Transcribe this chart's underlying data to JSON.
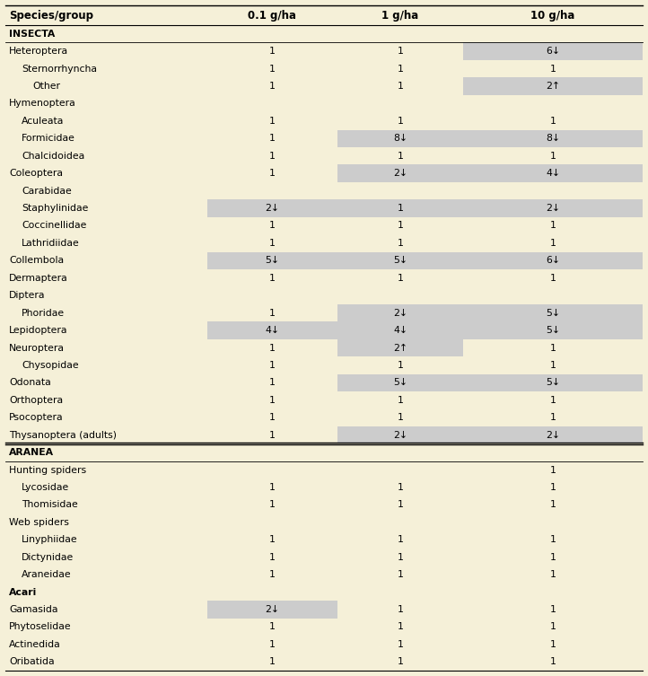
{
  "bg_color": "#f5f0d8",
  "cell_bg_highlight": "#cccccc",
  "col_headers": [
    "Species/group",
    "0.1 g/ha",
    "1 g/ha",
    "10 g/ha"
  ],
  "rows": [
    {
      "label": "INSECTA",
      "indent": 0,
      "bold": true,
      "vals": [
        "",
        "",
        ""
      ],
      "highlights": [
        false,
        false,
        false
      ]
    },
    {
      "label": "Heteroptera",
      "indent": 0,
      "bold": false,
      "vals": [
        "1",
        "1",
        "6↓"
      ],
      "highlights": [
        false,
        false,
        true
      ]
    },
    {
      "label": "Sternorrhyncha",
      "indent": 1,
      "bold": false,
      "vals": [
        "1",
        "1",
        "1"
      ],
      "highlights": [
        false,
        false,
        false
      ]
    },
    {
      "label": "Other",
      "indent": 2,
      "bold": false,
      "vals": [
        "1",
        "1",
        "2↑"
      ],
      "highlights": [
        false,
        false,
        true
      ]
    },
    {
      "label": "Hymenoptera",
      "indent": 0,
      "bold": false,
      "vals": [
        "",
        "",
        ""
      ],
      "highlights": [
        false,
        false,
        false
      ]
    },
    {
      "label": "Aculeata",
      "indent": 1,
      "bold": false,
      "vals": [
        "1",
        "1",
        "1"
      ],
      "highlights": [
        false,
        false,
        false
      ]
    },
    {
      "label": "Formicidae",
      "indent": 1,
      "bold": false,
      "vals": [
        "1",
        "8↓",
        "8↓"
      ],
      "highlights": [
        false,
        true,
        true
      ]
    },
    {
      "label": "Chalcidoidea",
      "indent": 1,
      "bold": false,
      "vals": [
        "1",
        "1",
        "1"
      ],
      "highlights": [
        false,
        false,
        false
      ]
    },
    {
      "label": "Coleoptera",
      "indent": 0,
      "bold": false,
      "vals": [
        "1",
        "2↓",
        "4↓"
      ],
      "highlights": [
        false,
        true,
        true
      ]
    },
    {
      "label": "Carabidae",
      "indent": 1,
      "bold": false,
      "vals": [
        "",
        "",
        ""
      ],
      "highlights": [
        false,
        false,
        false
      ]
    },
    {
      "label": "Staphylinidae",
      "indent": 1,
      "bold": false,
      "vals": [
        "2↓",
        "1",
        "2↓"
      ],
      "highlights": [
        true,
        false,
        true
      ]
    },
    {
      "label": "Coccinellidae",
      "indent": 1,
      "bold": false,
      "vals": [
        "1",
        "1",
        "1"
      ],
      "highlights": [
        false,
        false,
        false
      ]
    },
    {
      "label": "Lathridiidae",
      "indent": 1,
      "bold": false,
      "vals": [
        "1",
        "1",
        "1"
      ],
      "highlights": [
        false,
        false,
        false
      ]
    },
    {
      "label": "Collembola",
      "indent": 0,
      "bold": false,
      "vals": [
        "5↓",
        "5↓",
        "6↓"
      ],
      "highlights": [
        true,
        true,
        true
      ]
    },
    {
      "label": "Dermaptera",
      "indent": 0,
      "bold": false,
      "vals": [
        "1",
        "1",
        "1"
      ],
      "highlights": [
        false,
        false,
        false
      ]
    },
    {
      "label": "Diptera",
      "indent": 0,
      "bold": false,
      "vals": [
        "",
        "",
        ""
      ],
      "highlights": [
        false,
        false,
        false
      ]
    },
    {
      "label": "Phoridae",
      "indent": 1,
      "bold": false,
      "vals": [
        "1",
        "2↓",
        "5↓"
      ],
      "highlights": [
        false,
        true,
        true
      ]
    },
    {
      "label": "Lepidoptera",
      "indent": 0,
      "bold": false,
      "vals": [
        "4↓",
        "4↓",
        "5↓"
      ],
      "highlights": [
        true,
        true,
        true
      ]
    },
    {
      "label": "Neuroptera",
      "indent": 0,
      "bold": false,
      "vals": [
        "1",
        "2↑",
        "1"
      ],
      "highlights": [
        false,
        true,
        false
      ]
    },
    {
      "label": "Chysopidae",
      "indent": 1,
      "bold": false,
      "vals": [
        "1",
        "1",
        "1"
      ],
      "highlights": [
        false,
        false,
        false
      ]
    },
    {
      "label": "Odonata",
      "indent": 0,
      "bold": false,
      "vals": [
        "1",
        "5↓",
        "5↓"
      ],
      "highlights": [
        false,
        true,
        true
      ]
    },
    {
      "label": "Orthoptera",
      "indent": 0,
      "bold": false,
      "vals": [
        "1",
        "1",
        "1"
      ],
      "highlights": [
        false,
        false,
        false
      ]
    },
    {
      "label": "Psocoptera",
      "indent": 0,
      "bold": false,
      "vals": [
        "1",
        "1",
        "1"
      ],
      "highlights": [
        false,
        false,
        false
      ]
    },
    {
      "label": "Thysanoptera (adults)",
      "indent": 0,
      "bold": false,
      "vals": [
        "1",
        "2↓",
        "2↓"
      ],
      "highlights": [
        false,
        true,
        true
      ]
    },
    {
      "label": "ARANEA",
      "indent": 0,
      "bold": true,
      "vals": [
        "",
        "",
        ""
      ],
      "highlights": [
        false,
        false,
        false
      ]
    },
    {
      "label": "Hunting spiders",
      "indent": 0,
      "bold": false,
      "vals": [
        "",
        "",
        "1"
      ],
      "highlights": [
        false,
        false,
        false
      ]
    },
    {
      "label": "Lycosidae",
      "indent": 1,
      "bold": false,
      "vals": [
        "1",
        "1",
        "1"
      ],
      "highlights": [
        false,
        false,
        false
      ]
    },
    {
      "label": "Thomisidae",
      "indent": 1,
      "bold": false,
      "vals": [
        "1",
        "1",
        "1"
      ],
      "highlights": [
        false,
        false,
        false
      ]
    },
    {
      "label": "Web spiders",
      "indent": 0,
      "bold": false,
      "vals": [
        "",
        "",
        ""
      ],
      "highlights": [
        false,
        false,
        false
      ]
    },
    {
      "label": "Linyphiidae",
      "indent": 1,
      "bold": false,
      "vals": [
        "1",
        "1",
        "1"
      ],
      "highlights": [
        false,
        false,
        false
      ]
    },
    {
      "label": "Dictynidae",
      "indent": 1,
      "bold": false,
      "vals": [
        "1",
        "1",
        "1"
      ],
      "highlights": [
        false,
        false,
        false
      ]
    },
    {
      "label": "Araneidae",
      "indent": 1,
      "bold": false,
      "vals": [
        "1",
        "1",
        "1"
      ],
      "highlights": [
        false,
        false,
        false
      ]
    },
    {
      "label": "Acari",
      "indent": 0,
      "bold": true,
      "italic": false,
      "vals": [
        "",
        "",
        ""
      ],
      "highlights": [
        false,
        false,
        false
      ]
    },
    {
      "label": "Gamasida",
      "indent": 0,
      "bold": false,
      "vals": [
        "2↓",
        "1",
        "1"
      ],
      "highlights": [
        true,
        false,
        false
      ]
    },
    {
      "label": "Phytoselidae",
      "indent": 0,
      "bold": false,
      "vals": [
        "1",
        "1",
        "1"
      ],
      "highlights": [
        false,
        false,
        false
      ]
    },
    {
      "label": "Actinedida",
      "indent": 0,
      "bold": false,
      "vals": [
        "1",
        "1",
        "1"
      ],
      "highlights": [
        false,
        false,
        false
      ]
    },
    {
      "label": "Oribatida",
      "indent": 0,
      "bold": false,
      "vals": [
        "1",
        "1",
        "1"
      ],
      "highlights": [
        false,
        false,
        false
      ]
    }
  ],
  "font_size": 7.8,
  "header_font_size": 8.5
}
